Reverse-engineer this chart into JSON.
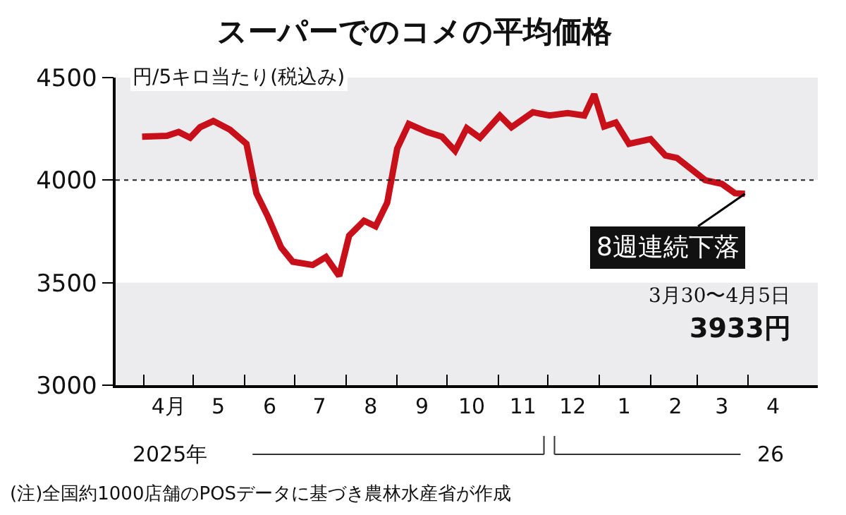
{
  "chart_data": {
    "type": "line",
    "title": "スーパーでのコメの平均価格",
    "ylabel": "円/5キロ当たり(税込み)",
    "x": [
      "2025-03-31",
      "2025-04-15",
      "2025-04-22",
      "2025-04-29",
      "2025-05-05",
      "2025-05-13",
      "2025-05-23",
      "2025-06-02",
      "2025-06-08",
      "2025-06-15",
      "2025-06-23",
      "2025-06-30",
      "2025-07-12",
      "2025-07-20",
      "2025-07-28",
      "2025-08-03",
      "2025-08-12",
      "2025-08-19",
      "2025-08-26",
      "2025-09-01",
      "2025-09-08",
      "2025-09-19",
      "2025-09-28",
      "2025-10-06",
      "2025-10-13",
      "2025-10-21",
      "2025-11-02",
      "2025-11-09",
      "2025-11-22",
      "2025-12-02",
      "2025-12-13",
      "2025-12-23",
      "2025-12-29",
      "2026-01-04",
      "2026-01-11",
      "2026-01-19",
      "2026-02-01",
      "2026-02-10",
      "2026-02-17",
      "2026-03-06",
      "2026-03-16",
      "2026-03-24",
      "2026-03-30"
    ],
    "series": [
      {
        "color": "#c8101a",
        "values": [
          4212,
          4216,
          4235,
          4207,
          4258,
          4288,
          4246,
          4177,
          3936,
          3821,
          3671,
          3602,
          3586,
          3625,
          3533,
          3729,
          3802,
          3775,
          3890,
          4154,
          4274,
          4235,
          4212,
          4143,
          4253,
          4207,
          4315,
          4258,
          4331,
          4315,
          4327,
          4315,
          4419,
          4262,
          4281,
          4177,
          4200,
          4120,
          4108,
          4000,
          3982,
          3936,
          3933
        ]
      }
    ],
    "xlim": [
      "2025-03-15",
      "2026-05-13"
    ],
    "xticks": [
      {
        "value": "2025-04-01",
        "label": null
      },
      {
        "value": "2025-05-01",
        "label": null
      },
      {
        "value": "2025-06-01",
        "label": null
      },
      {
        "value": "2025-07-01",
        "label": null
      },
      {
        "value": "2025-08-01",
        "label": null
      },
      {
        "value": "2025-09-01",
        "label": null
      },
      {
        "value": "2025-10-01",
        "label": null
      },
      {
        "value": "2025-11-01",
        "label": null
      },
      {
        "value": "2025-12-01",
        "label": null
      },
      {
        "value": "2026-01-01",
        "label": null
      },
      {
        "value": "2026-02-01",
        "label": null
      },
      {
        "value": "2026-03-01",
        "label": null
      },
      {
        "value": "2026-04-01",
        "label": null
      },
      {
        "value": "2025-04-16",
        "label": "4月"
      },
      {
        "value": "2025-05-16",
        "label": "5"
      },
      {
        "value": "2025-06-16",
        "label": "6"
      },
      {
        "value": "2025-07-16",
        "label": "7"
      },
      {
        "value": "2025-08-16",
        "label": "8"
      },
      {
        "value": "2025-09-16",
        "label": "9"
      },
      {
        "value": "2025-10-16",
        "label": "10"
      },
      {
        "value": "2025-11-16",
        "label": "11"
      },
      {
        "value": "2025-12-16",
        "label": "12"
      },
      {
        "value": "2026-01-16",
        "label": "1"
      },
      {
        "value": "2026-02-16",
        "label": "2"
      },
      {
        "value": "2026-03-16",
        "label": "3"
      },
      {
        "value": "2026-04-16",
        "label": "4"
      }
    ],
    "ylim": [
      3000,
      4500
    ],
    "yticks": [
      3000,
      3500,
      4000,
      4500
    ],
    "ref_lines": [
      {
        "axis": "y",
        "value": 4000,
        "color": "#222222",
        "line_style": "dotted"
      }
    ],
    "bands": [
      {
        "axis": "y",
        "from": 4000,
        "to": 4500,
        "color": "#ececee"
      },
      {
        "axis": "y",
        "from": 3000,
        "to": 3500,
        "color": "#ececee"
      }
    ],
    "annotations": [
      {
        "text": "8週連続下落",
        "x": "2026-03-30",
        "y": 3933
      },
      "3月30〜4月5日",
      "3933円",
      "2025年",
      "26",
      "(注)全国約1000店舗のPOSデータに基づき農林水産省が作成"
    ],
    "grid": false,
    "marker": "none",
    "line_style": "solid"
  }
}
